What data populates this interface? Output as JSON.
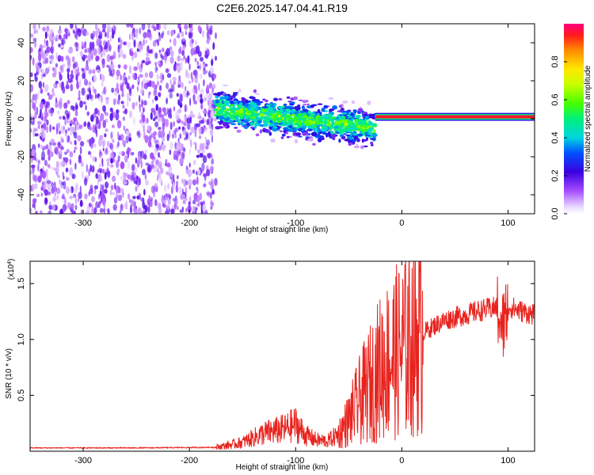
{
  "title": "C2E6.2025.147.04.41.R19",
  "chart_data": [
    {
      "type": "heatmap",
      "title": "C2E6.2025.147.04.41.R19",
      "xlabel": "Height of straight line (km)",
      "ylabel": "Frequency (Hz)",
      "xlim": [
        -350,
        125
      ],
      "ylim": [
        -50,
        50
      ],
      "xticks": [
        -300,
        -200,
        -100,
        0,
        100
      ],
      "yticks": [
        -40,
        -20,
        0,
        20,
        40
      ],
      "colorbar": {
        "label": "Normalized spectral amplitude",
        "range": [
          0,
          1
        ],
        "ticks": [
          0.0,
          0.2,
          0.4,
          0.6,
          0.8
        ],
        "tick_labels": [
          "0.0",
          "0.2",
          "0.4",
          "0.6",
          "0.8"
        ]
      },
      "regions": [
        {
          "name": "diffuse noise",
          "x_range": [
            -350,
            -175
          ],
          "freq_range": [
            -50,
            50
          ],
          "amplitude": 0.1
        },
        {
          "name": "scattered band",
          "x_range": [
            -175,
            -25
          ],
          "freq_center_start": 5,
          "freq_center_end": -5,
          "amplitude": 0.35
        },
        {
          "name": "narrow carrier line",
          "x_range": [
            -25,
            125
          ],
          "freq_center": 1,
          "amplitude": 0.95
        }
      ]
    },
    {
      "type": "line",
      "xlabel": "Height of straight line (km)",
      "ylabel": "SNR (10 * v/v)",
      "y_exponent_label": "(x10",
      "y_exponent": "4",
      "xlim": [
        -350,
        125
      ],
      "ylim": [
        0,
        17000
      ],
      "xticks": [
        -300,
        -200,
        -100,
        0,
        100
      ],
      "yticks": [
        5000,
        10000,
        15000
      ],
      "ytick_labels": [
        "0.5",
        "1.0",
        "1.5"
      ],
      "series": [
        {
          "name": "SNR",
          "color": "#e8231e",
          "x": [
            -350,
            -250,
            -175,
            -160,
            -150,
            -140,
            -130,
            -120,
            -110,
            -100,
            -90,
            -80,
            -70,
            -60,
            -50,
            -40,
            -30,
            -20,
            -10,
            0,
            10,
            20,
            30,
            40,
            50,
            60,
            70,
            80,
            90,
            95,
            100,
            110,
            125
          ],
          "y": [
            300,
            300,
            350,
            600,
            800,
            1200,
            1600,
            1800,
            2000,
            2400,
            1400,
            1000,
            900,
            1500,
            2800,
            4500,
            6000,
            7500,
            8500,
            9200,
            10000,
            10600,
            11200,
            11700,
            12000,
            12200,
            12500,
            12700,
            12900,
            11000,
            13000,
            12600,
            12200
          ]
        }
      ]
    }
  ]
}
